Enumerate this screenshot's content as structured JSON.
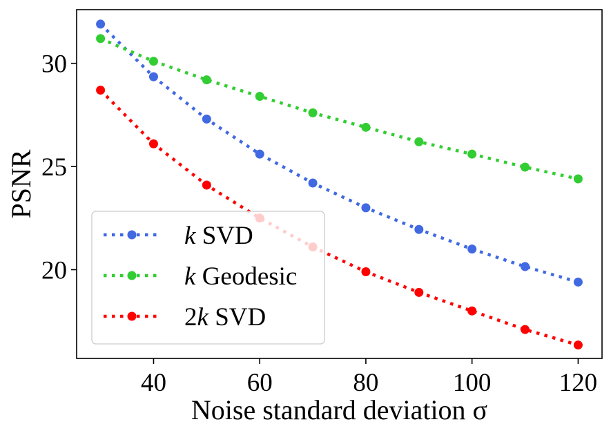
{
  "chart_data": {
    "type": "line",
    "title": "",
    "xlabel": "Noise standard deviation σ",
    "ylabel": "PSNR",
    "x": [
      30,
      40,
      50,
      60,
      70,
      80,
      90,
      100,
      110,
      120
    ],
    "xlim": [
      25.5,
      124.5
    ],
    "ylim": [
      15.7,
      32.6
    ],
    "xticks": [
      40,
      60,
      80,
      100,
      120
    ],
    "yticks": [
      20,
      25,
      30
    ],
    "xtick_labels": [
      "40",
      "60",
      "80",
      "100",
      "120"
    ],
    "ytick_labels": [
      "20",
      "25",
      "30"
    ],
    "grid": false,
    "legend_position": "lower-left",
    "series": [
      {
        "name": "k SVD",
        "legend_italic": "k",
        "legend_rest": " SVD",
        "color": "#4169e1",
        "values": [
          31.9,
          29.35,
          27.3,
          25.6,
          24.2,
          23.0,
          21.95,
          21.0,
          20.15,
          19.4
        ]
      },
      {
        "name": "k Geodesic",
        "legend_italic": "k",
        "legend_rest": " Geodesic",
        "color": "#32cd32",
        "values": [
          31.2,
          30.1,
          29.2,
          28.4,
          27.6,
          26.9,
          26.2,
          25.6,
          24.97,
          24.4
        ]
      },
      {
        "name": "2k SVD",
        "legend_prefix": "2",
        "legend_italic": "k",
        "legend_rest": " SVD",
        "color": "#ff0000",
        "values": [
          28.7,
          26.1,
          24.1,
          22.5,
          21.1,
          19.9,
          18.9,
          18.0,
          17.1,
          16.35
        ]
      }
    ]
  }
}
